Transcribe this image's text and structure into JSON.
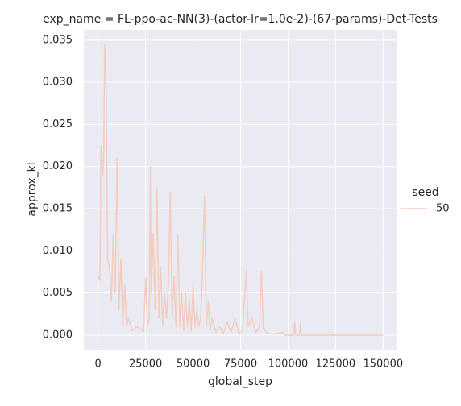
{
  "chart_data": {
    "type": "line",
    "title": "exp_name = FL-ppo-ac-NN(3)-(actor-lr=1.0e-2)-(67-params)-Det-Tests",
    "x_label": "global_step",
    "y_label": "approx_kl",
    "legend_title": "seed",
    "x": [
      0,
      1000,
      1500,
      2500,
      3000,
      3500,
      4200,
      5000,
      6000,
      7000,
      8000,
      9000,
      10000,
      11000,
      12000,
      13000,
      14000,
      15000,
      16000,
      18000,
      20000,
      22000,
      24000,
      25000,
      26000,
      27000,
      27500,
      28000,
      29000,
      30000,
      31000,
      32000,
      33000,
      34000,
      35000,
      36000,
      37000,
      38000,
      39000,
      40000,
      41000,
      42000,
      43000,
      44000,
      45000,
      46000,
      47000,
      48000,
      49000,
      50000,
      51000,
      52000,
      53000,
      54000,
      55000,
      56000,
      57000,
      58000,
      59000,
      60000,
      62000,
      64000,
      66000,
      68000,
      70000,
      72000,
      74000,
      76000,
      78000,
      79000,
      81000,
      83000,
      85000,
      86000,
      87000,
      89000,
      92000,
      97000,
      98000,
      103000,
      103500,
      104000,
      106000,
      106500,
      107000,
      150000
    ],
    "series": [
      {
        "name": "50",
        "color": "#f2cdc0",
        "values": [
          0.007,
          0.0065,
          0.0225,
          0.019,
          0.022,
          0.0345,
          0.03,
          0.009,
          0.008,
          0.004,
          0.012,
          0.005,
          0.021,
          0.003,
          0.009,
          0.001,
          0.006,
          0.001,
          0.002,
          0.0005,
          0.001,
          0.0008,
          0.0005,
          0.0068,
          0.001,
          0.002,
          0.02,
          0.005,
          0.012,
          0.003,
          0.0175,
          0.002,
          0.008,
          0.001,
          0.005,
          0.002,
          0.006,
          0.017,
          0.002,
          0.007,
          0.001,
          0.012,
          0.001,
          0.005,
          0.0005,
          0.005,
          0.001,
          0.004,
          0.0005,
          0.006,
          0.001,
          0.003,
          0.001,
          0.002,
          0.008,
          0.0165,
          0.001,
          0.004,
          0.0005,
          0.002,
          0.0003,
          0.001,
          0.0002,
          0.0015,
          0.0003,
          0.002,
          0.0002,
          0.0005,
          0.0075,
          0.001,
          0.002,
          0.0003,
          0.001,
          0.0075,
          0.0008,
          0.0002,
          0.0001,
          0.0003,
          0,
          0,
          0.0015,
          0,
          0,
          0.0015,
          0,
          0
        ]
      }
    ],
    "xlim": [
      -7500,
      157500
    ],
    "xticks": [
      0,
      25000,
      50000,
      75000,
      100000,
      125000,
      150000
    ],
    "ylim": [
      -0.001725,
      0.036225
    ],
    "yticks": [
      {
        "value": 0,
        "label": "0.000"
      },
      {
        "value": 0.005,
        "label": "0.005"
      },
      {
        "value": 0.01,
        "label": "0.010"
      },
      {
        "value": 0.015,
        "label": "0.015"
      },
      {
        "value": 0.02,
        "label": "0.020"
      },
      {
        "value": 0.025,
        "label": "0.025"
      },
      {
        "value": 0.03,
        "label": "0.030"
      },
      {
        "value": 0.035,
        "label": "0.035"
      }
    ],
    "grid": true
  }
}
